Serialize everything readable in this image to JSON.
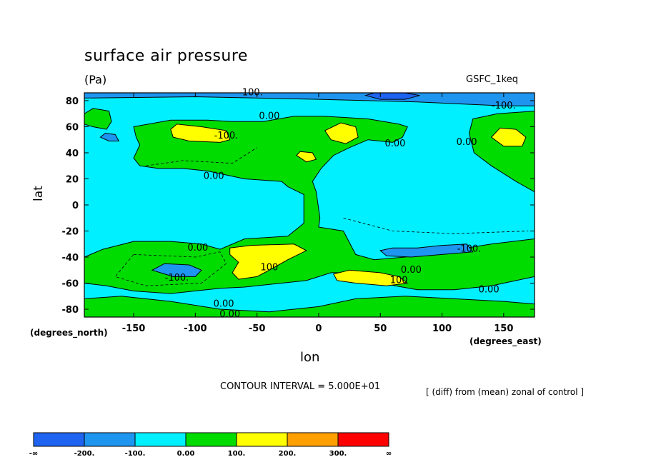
{
  "chart_data": {
    "type": "heatmap",
    "title": "surface air pressure",
    "units": "(Pa)",
    "model": "GSFC_1keq",
    "xlabel": "lon",
    "ylabel": "lat",
    "x_unit_label": "(degrees_east)",
    "y_unit_label": "(degrees_north)",
    "contour_interval": "CONTOUR INTERVAL = 5.000E+01",
    "note": "[ (diff) from (mean) zonal of control ]",
    "xlim": [
      -190,
      175
    ],
    "ylim": [
      -86,
      86
    ],
    "x_ticks": [
      -150,
      -100,
      -50,
      0,
      50,
      100,
      150
    ],
    "x_tick_labels": [
      "-150",
      "-100",
      "-50",
      "0",
      "50",
      "100",
      "150"
    ],
    "y_ticks": [
      80,
      60,
      40,
      20,
      0,
      -20,
      -40,
      -60,
      -80
    ],
    "y_tick_labels": [
      "80",
      "60",
      "40",
      "20",
      "0",
      "-20",
      "-40",
      "-60",
      "-80"
    ],
    "colorbar": {
      "bounds": [
        "-∞",
        "-200.",
        "-100.",
        "0.00",
        "100.",
        "200.",
        "300.",
        "∞"
      ],
      "colors": [
        "#1e64f0",
        "#1e96f0",
        "#00f0ff",
        "#00dc00",
        "#ffff00",
        "#ffa000",
        "#ff0000"
      ]
    },
    "contour_labels": [
      {
        "text": "-100.",
        "lon": -55,
        "lat": 84
      },
      {
        "text": "-100.",
        "lon": 150,
        "lat": 74
      },
      {
        "text": "0.00",
        "lon": -40,
        "lat": 66
      },
      {
        "text": "-100.",
        "lon": -75,
        "lat": 51
      },
      {
        "text": "0.00",
        "lon": 62,
        "lat": 45
      },
      {
        "text": "0.00",
        "lon": 120,
        "lat": 46
      },
      {
        "text": "0.00",
        "lon": -85,
        "lat": 20
      },
      {
        "text": "0.00",
        "lon": -98,
        "lat": -35
      },
      {
        "text": "100",
        "lon": -40,
        "lat": -50
      },
      {
        "text": "-100.",
        "lon": -115,
        "lat": -58
      },
      {
        "text": "100",
        "lon": 65,
        "lat": -60
      },
      {
        "text": "0.00",
        "lon": 75,
        "lat": -52
      },
      {
        "text": "-100.",
        "lon": 122,
        "lat": -36
      },
      {
        "text": "0.00",
        "lon": 138,
        "lat": -67
      },
      {
        "text": "0.00",
        "lon": -77,
        "lat": -78
      },
      {
        "text": "0.00",
        "lon": -72,
        "lat": -86
      }
    ],
    "regions": [
      {
        "level": "0 to 100",
        "poly": [
          [
            -190,
            70
          ],
          [
            -183,
            74
          ],
          [
            -176,
            73
          ],
          [
            -170,
            72
          ],
          [
            -168,
            64
          ],
          [
            -172,
            58
          ],
          [
            -183,
            60
          ],
          [
            -190,
            62
          ]
        ]
      },
      {
        "level": "0 to 100",
        "poly": [
          [
            -150,
            60
          ],
          [
            -120,
            65
          ],
          [
            -90,
            65
          ],
          [
            -70,
            64
          ],
          [
            -45,
            64
          ],
          [
            -20,
            68
          ],
          [
            5,
            68
          ],
          [
            40,
            66
          ],
          [
            65,
            62
          ],
          [
            72,
            60
          ],
          [
            68,
            52
          ],
          [
            60,
            48
          ],
          [
            40,
            50
          ],
          [
            25,
            44
          ],
          [
            12,
            38
          ],
          [
            2,
            28
          ],
          [
            -5,
            18
          ],
          [
            -2,
            10
          ],
          [
            1,
            -10
          ],
          [
            0,
            -17
          ],
          [
            20,
            -20
          ],
          [
            30,
            -38
          ],
          [
            45,
            -42
          ],
          [
            70,
            -40
          ],
          [
            100,
            -36
          ],
          [
            140,
            -30
          ],
          [
            175,
            -26
          ],
          [
            175,
            -55
          ],
          [
            140,
            -62
          ],
          [
            110,
            -65
          ],
          [
            80,
            -65
          ],
          [
            50,
            -60
          ],
          [
            35,
            -52
          ],
          [
            10,
            -52
          ],
          [
            -10,
            -58
          ],
          [
            -30,
            -60
          ],
          [
            -60,
            -63
          ],
          [
            -80,
            -64
          ],
          [
            -120,
            -68
          ],
          [
            -150,
            -66
          ],
          [
            -172,
            -62
          ],
          [
            -190,
            -60
          ],
          [
            -190,
            -40
          ],
          [
            -175,
            -34
          ],
          [
            -150,
            -28
          ],
          [
            -120,
            -28
          ],
          [
            -95,
            -30
          ],
          [
            -80,
            -34
          ],
          [
            -60,
            -26
          ],
          [
            -25,
            -24
          ],
          [
            -12,
            -14
          ],
          [
            -12,
            8
          ],
          [
            -25,
            14
          ],
          [
            -30,
            18
          ],
          [
            -60,
            20
          ],
          [
            -90,
            26
          ],
          [
            -110,
            28
          ],
          [
            -130,
            28
          ],
          [
            -145,
            30
          ],
          [
            -150,
            36
          ],
          [
            -145,
            46
          ],
          [
            -148,
            52
          ]
        ]
      },
      {
        "level": "0 to 100",
        "poly": [
          [
            125,
            66
          ],
          [
            145,
            70
          ],
          [
            175,
            72
          ],
          [
            175,
            10
          ],
          [
            160,
            18
          ],
          [
            140,
            30
          ],
          [
            126,
            40
          ],
          [
            122,
            55
          ]
        ]
      },
      {
        "level": "0 to 100",
        "poly": [
          [
            -190,
            -72
          ],
          [
            -160,
            -70
          ],
          [
            -120,
            -74
          ],
          [
            -80,
            -80
          ],
          [
            -40,
            -82
          ],
          [
            0,
            -78
          ],
          [
            30,
            -72
          ],
          [
            70,
            -70
          ],
          [
            110,
            -72
          ],
          [
            150,
            -74
          ],
          [
            175,
            -76
          ],
          [
            175,
            -86
          ],
          [
            -190,
            -86
          ]
        ]
      },
      {
        "level": "100 to 200",
        "poly": [
          [
            -120,
            58
          ],
          [
            -118,
            52
          ],
          [
            -105,
            49
          ],
          [
            -80,
            48
          ],
          [
            -72,
            50
          ],
          [
            -75,
            57
          ],
          [
            -95,
            60
          ],
          [
            -115,
            62
          ]
        ]
      },
      {
        "level": "100 to 200",
        "poly": [
          [
            5,
            57
          ],
          [
            10,
            50
          ],
          [
            22,
            47
          ],
          [
            32,
            52
          ],
          [
            30,
            60
          ],
          [
            18,
            63
          ]
        ]
      },
      {
        "level": "100 to 200",
        "poly": [
          [
            -18,
            38
          ],
          [
            -10,
            33
          ],
          [
            -2,
            35
          ],
          [
            -5,
            40
          ],
          [
            -15,
            41
          ]
        ]
      },
      {
        "level": "100 to 200",
        "poly": [
          [
            140,
            52
          ],
          [
            150,
            45
          ],
          [
            165,
            45
          ],
          [
            168,
            52
          ],
          [
            160,
            58
          ],
          [
            147,
            59
          ]
        ]
      },
      {
        "level": "100 to 200",
        "poly": [
          [
            -72,
            -33
          ],
          [
            -55,
            -31
          ],
          [
            -20,
            -30
          ],
          [
            -10,
            -35
          ],
          [
            -25,
            -42
          ],
          [
            -40,
            -50
          ],
          [
            -50,
            -55
          ],
          [
            -65,
            -57
          ],
          [
            -70,
            -52
          ],
          [
            -65,
            -44
          ],
          [
            -72,
            -38
          ]
        ]
      },
      {
        "level": "100 to 200",
        "poly": [
          [
            12,
            -53
          ],
          [
            25,
            -50
          ],
          [
            50,
            -52
          ],
          [
            65,
            -55
          ],
          [
            72,
            -60
          ],
          [
            55,
            -62
          ],
          [
            30,
            -60
          ],
          [
            15,
            -58
          ]
        ]
      },
      {
        "level": "-100 to -200 (below -100)",
        "poly": [
          [
            -135,
            -50
          ],
          [
            -125,
            -45
          ],
          [
            -105,
            -46
          ],
          [
            -95,
            -50
          ],
          [
            -100,
            -55
          ],
          [
            -118,
            -55
          ]
        ]
      },
      {
        "level": "-100 to -200 (below -100)",
        "poly": [
          [
            50,
            -35
          ],
          [
            60,
            -33
          ],
          [
            80,
            -33
          ],
          [
            100,
            -31
          ],
          [
            120,
            -30
          ],
          [
            125,
            -36
          ],
          [
            100,
            -38
          ],
          [
            75,
            -40
          ],
          [
            55,
            -39
          ]
        ]
      },
      {
        "level": "-100 to -200 (below -100)",
        "poly": [
          [
            -177,
            52
          ],
          [
            -170,
            49
          ],
          [
            -162,
            49
          ],
          [
            -165,
            54
          ],
          [
            -173,
            55
          ]
        ]
      },
      {
        "level": "-100 to -200 (below -100)",
        "poly": [
          [
            -190,
            82
          ],
          [
            -100,
            83
          ],
          [
            0,
            81
          ],
          [
            80,
            79
          ],
          [
            150,
            76
          ],
          [
            175,
            76
          ],
          [
            175,
            86
          ],
          [
            -190,
            86
          ]
        ]
      },
      {
        "level": "-200 to -inf",
        "poly": [
          [
            38,
            84
          ],
          [
            50,
            81
          ],
          [
            70,
            81
          ],
          [
            82,
            84
          ],
          [
            70,
            86
          ],
          [
            45,
            86
          ]
        ]
      }
    ]
  }
}
